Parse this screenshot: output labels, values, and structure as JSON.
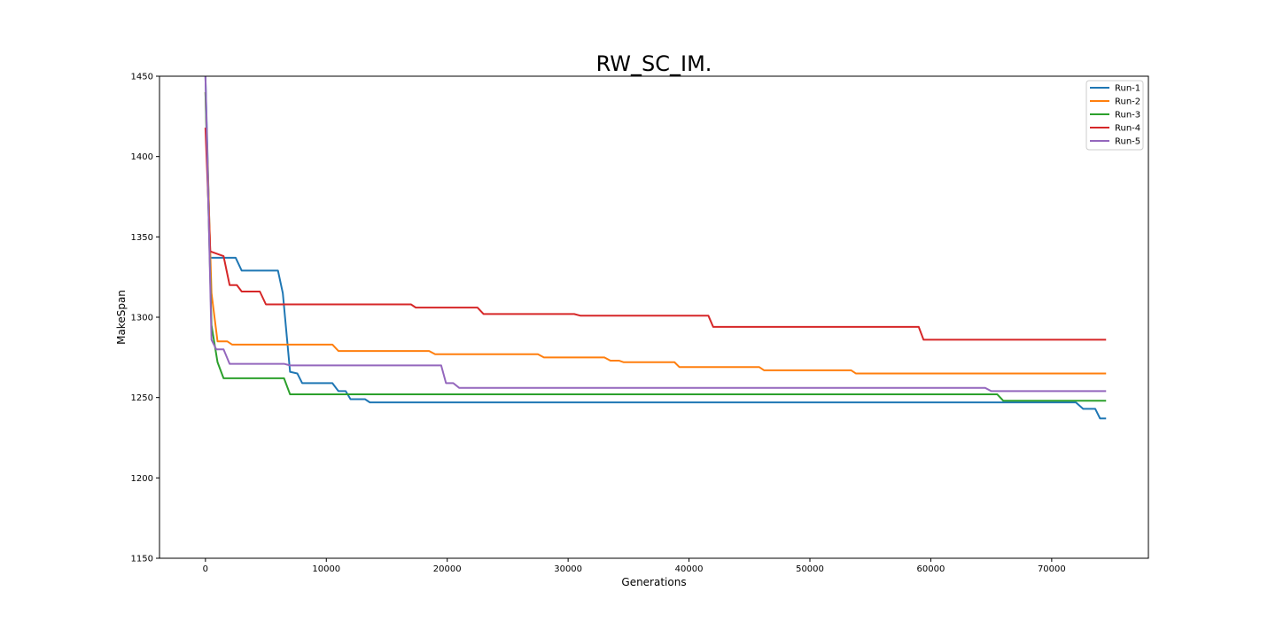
{
  "chart_data": {
    "type": "line",
    "title": "RW_SC_IM.",
    "xlabel": "Generations",
    "ylabel": "MakeSpan",
    "xlim": [
      -3800,
      78000
    ],
    "ylim": [
      1150,
      1450
    ],
    "x_ticks": [
      0,
      10000,
      20000,
      30000,
      40000,
      50000,
      60000,
      70000
    ],
    "y_ticks": [
      1150,
      1200,
      1250,
      1300,
      1350,
      1400,
      1450
    ],
    "grid": false,
    "legend_position": "top-right",
    "series": [
      {
        "name": "Run-1",
        "color": "#1f77b4",
        "points": [
          [
            0,
            1450
          ],
          [
            400,
            1337
          ],
          [
            2500,
            1337
          ],
          [
            3000,
            1329
          ],
          [
            6000,
            1329
          ],
          [
            6400,
            1315
          ],
          [
            7000,
            1266
          ],
          [
            7600,
            1265
          ],
          [
            8000,
            1259
          ],
          [
            10500,
            1259
          ],
          [
            11000,
            1254
          ],
          [
            11600,
            1254
          ],
          [
            12000,
            1249
          ],
          [
            13200,
            1249
          ],
          [
            13600,
            1247
          ],
          [
            72000,
            1247
          ],
          [
            72600,
            1243
          ],
          [
            73600,
            1243
          ],
          [
            74000,
            1237
          ],
          [
            74500,
            1237
          ]
        ]
      },
      {
        "name": "Run-2",
        "color": "#ff7f0e",
        "points": [
          [
            0,
            1440
          ],
          [
            500,
            1315
          ],
          [
            1000,
            1285
          ],
          [
            1800,
            1285
          ],
          [
            2200,
            1283
          ],
          [
            10500,
            1283
          ],
          [
            11000,
            1279
          ],
          [
            18500,
            1279
          ],
          [
            19000,
            1277
          ],
          [
            27500,
            1277
          ],
          [
            28000,
            1275
          ],
          [
            33000,
            1275
          ],
          [
            33500,
            1273
          ],
          [
            34200,
            1273
          ],
          [
            34600,
            1272
          ],
          [
            38800,
            1272
          ],
          [
            39200,
            1269
          ],
          [
            45800,
            1269
          ],
          [
            46200,
            1267
          ],
          [
            53400,
            1267
          ],
          [
            53800,
            1265
          ],
          [
            74500,
            1265
          ]
        ]
      },
      {
        "name": "Run-3",
        "color": "#2ca02c",
        "points": [
          [
            0,
            1440
          ],
          [
            500,
            1295
          ],
          [
            1000,
            1272
          ],
          [
            1500,
            1262
          ],
          [
            6500,
            1262
          ],
          [
            7000,
            1252
          ],
          [
            65500,
            1252
          ],
          [
            66000,
            1248
          ],
          [
            74500,
            1248
          ]
        ]
      },
      {
        "name": "Run-4",
        "color": "#d62728",
        "points": [
          [
            0,
            1418
          ],
          [
            400,
            1341
          ],
          [
            1500,
            1338
          ],
          [
            2000,
            1320
          ],
          [
            2600,
            1320
          ],
          [
            3000,
            1316
          ],
          [
            4500,
            1316
          ],
          [
            5000,
            1308
          ],
          [
            17000,
            1308
          ],
          [
            17400,
            1306
          ],
          [
            22500,
            1306
          ],
          [
            23000,
            1302
          ],
          [
            30500,
            1302
          ],
          [
            31000,
            1301
          ],
          [
            41600,
            1301
          ],
          [
            42000,
            1294
          ],
          [
            59000,
            1294
          ],
          [
            59400,
            1286
          ],
          [
            74500,
            1286
          ]
        ]
      },
      {
        "name": "Run-5",
        "color": "#9467bd",
        "points": [
          [
            0,
            1450
          ],
          [
            500,
            1286
          ],
          [
            900,
            1280
          ],
          [
            1500,
            1280
          ],
          [
            2000,
            1271
          ],
          [
            6500,
            1271
          ],
          [
            7000,
            1270
          ],
          [
            19500,
            1270
          ],
          [
            19900,
            1259
          ],
          [
            20500,
            1259
          ],
          [
            21000,
            1256
          ],
          [
            64500,
            1256
          ],
          [
            65000,
            1254
          ],
          [
            74500,
            1254
          ]
        ]
      }
    ]
  }
}
